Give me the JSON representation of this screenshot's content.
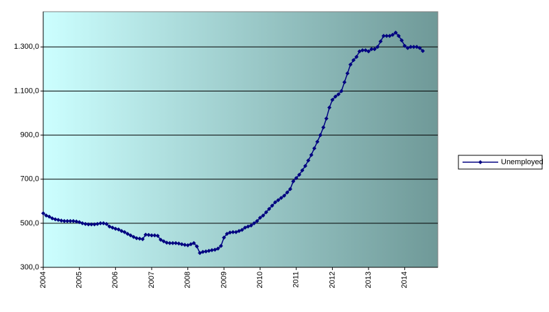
{
  "chart_data": {
    "type": "line",
    "categories": [
      "2004",
      null,
      null,
      null,
      null,
      null,
      null,
      null,
      null,
      null,
      null,
      null,
      "2005",
      null,
      null,
      null,
      null,
      null,
      null,
      null,
      null,
      null,
      null,
      null,
      "2006",
      null,
      null,
      null,
      null,
      null,
      null,
      null,
      null,
      null,
      null,
      null,
      "2007",
      null,
      null,
      null,
      null,
      null,
      null,
      null,
      null,
      null,
      null,
      null,
      "2008",
      null,
      null,
      null,
      null,
      null,
      null,
      null,
      null,
      null,
      null,
      null,
      "2009",
      null,
      null,
      null,
      null,
      null,
      null,
      null,
      null,
      null,
      null,
      null,
      "2010",
      null,
      null,
      null,
      null,
      null,
      null,
      null,
      null,
      null,
      null,
      null,
      "2011",
      null,
      null,
      null,
      null,
      null,
      null,
      null,
      null,
      null,
      null,
      null,
      "2012",
      null,
      null,
      null,
      null,
      null,
      null,
      null,
      null,
      null,
      null,
      null,
      "2013",
      null,
      null,
      null,
      null,
      null,
      null,
      null,
      null,
      null,
      null,
      null,
      "2014",
      null,
      null,
      null,
      null,
      null,
      null,
      null,
      null,
      null,
      null
    ],
    "series": [
      {
        "name": "Unemployed",
        "color": "#000080",
        "values": [
          545,
          535,
          530,
          522,
          518,
          515,
          512,
          510,
          510,
          510,
          510,
          508,
          505,
          500,
          497,
          495,
          495,
          495,
          497,
          500,
          500,
          497,
          485,
          480,
          475,
          472,
          465,
          460,
          452,
          445,
          438,
          432,
          430,
          428,
          448,
          447,
          445,
          445,
          443,
          425,
          418,
          412,
          410,
          410,
          410,
          408,
          405,
          402,
          400,
          405,
          410,
          395,
          365,
          370,
          372,
          375,
          378,
          380,
          385,
          397,
          435,
          452,
          458,
          460,
          460,
          465,
          470,
          480,
          485,
          490,
          500,
          510,
          525,
          535,
          550,
          565,
          580,
          595,
          605,
          615,
          625,
          640,
          655,
          690,
          705,
          720,
          740,
          760,
          785,
          810,
          840,
          870,
          900,
          935,
          975,
          1025,
          1060,
          1075,
          1085,
          1100,
          1140,
          1180,
          1220,
          1240,
          1255,
          1280,
          1285,
          1285,
          1280,
          1290,
          1290,
          1300,
          1325,
          1350,
          1350,
          1350,
          1355,
          1365,
          1350,
          1330,
          1305,
          1295,
          1300,
          1300,
          1300,
          1295,
          1282,
          null,
          null,
          null,
          null
        ]
      }
    ],
    "ylim": [
      300,
      1460
    ],
    "yticks": [
      {
        "value": 300,
        "label": "300,0"
      },
      {
        "value": 500,
        "label": "500,0"
      },
      {
        "value": 700,
        "label": "700,0"
      },
      {
        "value": 900,
        "label": "900,0"
      },
      {
        "value": 1100,
        "label": "1.100,0"
      },
      {
        "value": 1300,
        "label": "1.300,0"
      }
    ],
    "grid": true,
    "legend": "right",
    "plot_colors": [
      "#ccffff",
      "#6f9998"
    ]
  }
}
